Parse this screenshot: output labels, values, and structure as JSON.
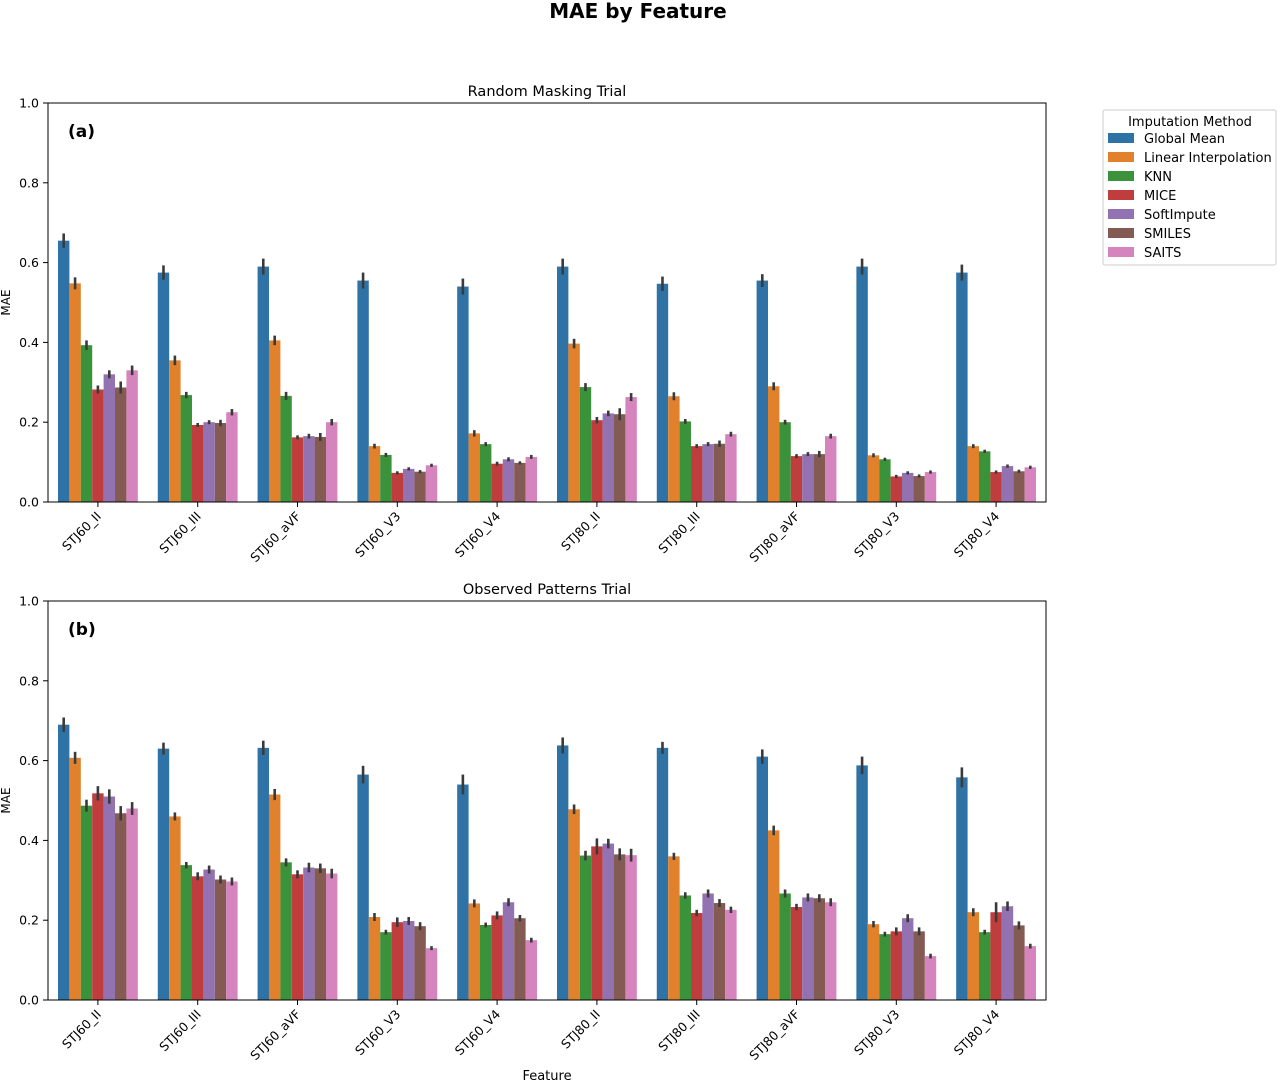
{
  "figure": {
    "title": "MAE by Feature",
    "xlabel": "Feature",
    "legend": {
      "title": "Imputation Method",
      "placement": "outside-right"
    }
  },
  "chart_data": [
    {
      "type": "bar",
      "title": "Random Masking Trial",
      "panel_label": "(a)",
      "xlabel": "",
      "ylabel": "MAE",
      "ylim": [
        0,
        1.0
      ],
      "yticks": [
        "0.0",
        "0.2",
        "0.4",
        "0.6",
        "0.8",
        "1.0"
      ],
      "categories": [
        "STJ60_II",
        "STJ60_III",
        "STJ60_aVF",
        "STJ60_V3",
        "STJ60_V4",
        "STJ80_II",
        "STJ80_III",
        "STJ80_aVF",
        "STJ80_V3",
        "STJ80_V4"
      ],
      "series": [
        {
          "name": "Global Mean",
          "color": "#2f72a6",
          "values": [
            0.655,
            0.575,
            0.59,
            0.555,
            0.54,
            0.59,
            0.547,
            0.555,
            0.59,
            0.575
          ],
          "errors": [
            0.018,
            0.018,
            0.02,
            0.02,
            0.02,
            0.02,
            0.018,
            0.016,
            0.02,
            0.02
          ]
        },
        {
          "name": "Linear Interpolation",
          "color": "#e1812c",
          "values": [
            0.548,
            0.355,
            0.405,
            0.14,
            0.172,
            0.397,
            0.265,
            0.29,
            0.117,
            0.14
          ],
          "errors": [
            0.015,
            0.012,
            0.012,
            0.006,
            0.008,
            0.012,
            0.01,
            0.01,
            0.005,
            0.005
          ]
        },
        {
          "name": "KNN",
          "color": "#3a923a",
          "values": [
            0.393,
            0.268,
            0.266,
            0.118,
            0.145,
            0.288,
            0.202,
            0.2,
            0.107,
            0.127
          ],
          "errors": [
            0.012,
            0.008,
            0.01,
            0.005,
            0.005,
            0.01,
            0.006,
            0.006,
            0.004,
            0.004
          ]
        },
        {
          "name": "MICE",
          "color": "#c03d3e",
          "values": [
            0.282,
            0.193,
            0.162,
            0.073,
            0.096,
            0.205,
            0.14,
            0.115,
            0.064,
            0.075
          ],
          "errors": [
            0.01,
            0.005,
            0.005,
            0.004,
            0.005,
            0.008,
            0.005,
            0.005,
            0.004,
            0.004
          ]
        },
        {
          "name": "SoftImpute",
          "color": "#9372b2",
          "values": [
            0.32,
            0.2,
            0.165,
            0.083,
            0.107,
            0.222,
            0.145,
            0.12,
            0.073,
            0.09
          ],
          "errors": [
            0.01,
            0.005,
            0.006,
            0.004,
            0.005,
            0.007,
            0.005,
            0.005,
            0.004,
            0.004
          ]
        },
        {
          "name": "SMILES",
          "color": "#845b53",
          "values": [
            0.287,
            0.198,
            0.163,
            0.076,
            0.098,
            0.22,
            0.146,
            0.12,
            0.065,
            0.077
          ],
          "errors": [
            0.015,
            0.008,
            0.01,
            0.004,
            0.004,
            0.015,
            0.008,
            0.008,
            0.004,
            0.004
          ]
        },
        {
          "name": "SAITS",
          "color": "#d684bd",
          "values": [
            0.33,
            0.225,
            0.2,
            0.092,
            0.113,
            0.263,
            0.17,
            0.165,
            0.075,
            0.087
          ],
          "errors": [
            0.012,
            0.008,
            0.008,
            0.004,
            0.005,
            0.01,
            0.006,
            0.006,
            0.004,
            0.004
          ]
        }
      ]
    },
    {
      "type": "bar",
      "title": "Observed Patterns Trial",
      "panel_label": "(b)",
      "xlabel": "Feature",
      "ylabel": "MAE",
      "ylim": [
        0,
        1.0
      ],
      "yticks": [
        "0.0",
        "0.2",
        "0.4",
        "0.6",
        "0.8",
        "1.0"
      ],
      "categories": [
        "STJ60_II",
        "STJ60_III",
        "STJ60_aVF",
        "STJ60_V3",
        "STJ60_V4",
        "STJ80_II",
        "STJ80_III",
        "STJ80_aVF",
        "STJ80_V3",
        "STJ80_V4"
      ],
      "series": [
        {
          "name": "Global Mean",
          "color": "#2f72a6",
          "values": [
            0.69,
            0.63,
            0.632,
            0.565,
            0.54,
            0.638,
            0.632,
            0.61,
            0.588,
            0.558
          ],
          "errors": [
            0.018,
            0.015,
            0.018,
            0.022,
            0.025,
            0.02,
            0.015,
            0.018,
            0.022,
            0.025
          ]
        },
        {
          "name": "Linear Interpolation",
          "color": "#e1812c",
          "values": [
            0.607,
            0.46,
            0.515,
            0.208,
            0.242,
            0.478,
            0.36,
            0.425,
            0.19,
            0.22
          ],
          "errors": [
            0.015,
            0.01,
            0.014,
            0.01,
            0.01,
            0.012,
            0.009,
            0.012,
            0.008,
            0.01
          ]
        },
        {
          "name": "KNN",
          "color": "#3a923a",
          "values": [
            0.487,
            0.338,
            0.345,
            0.17,
            0.188,
            0.362,
            0.262,
            0.267,
            0.165,
            0.17
          ],
          "errors": [
            0.015,
            0.008,
            0.01,
            0.006,
            0.006,
            0.012,
            0.008,
            0.01,
            0.006,
            0.006
          ]
        },
        {
          "name": "MICE",
          "color": "#c03d3e",
          "values": [
            0.518,
            0.31,
            0.315,
            0.195,
            0.212,
            0.385,
            0.218,
            0.233,
            0.172,
            0.22
          ],
          "errors": [
            0.018,
            0.01,
            0.01,
            0.012,
            0.01,
            0.02,
            0.008,
            0.008,
            0.01,
            0.025
          ]
        },
        {
          "name": "SoftImpute",
          "color": "#9372b2",
          "values": [
            0.51,
            0.327,
            0.332,
            0.198,
            0.245,
            0.392,
            0.267,
            0.257,
            0.205,
            0.235
          ],
          "errors": [
            0.018,
            0.01,
            0.012,
            0.01,
            0.01,
            0.012,
            0.01,
            0.01,
            0.01,
            0.012
          ]
        },
        {
          "name": "SMILES",
          "color": "#845b53",
          "values": [
            0.468,
            0.302,
            0.33,
            0.185,
            0.205,
            0.365,
            0.243,
            0.255,
            0.172,
            0.187
          ],
          "errors": [
            0.018,
            0.01,
            0.012,
            0.01,
            0.008,
            0.015,
            0.01,
            0.01,
            0.01,
            0.01
          ]
        },
        {
          "name": "SAITS",
          "color": "#d684bd",
          "values": [
            0.48,
            0.297,
            0.317,
            0.13,
            0.15,
            0.363,
            0.226,
            0.245,
            0.11,
            0.135
          ],
          "errors": [
            0.016,
            0.01,
            0.012,
            0.005,
            0.006,
            0.016,
            0.008,
            0.01,
            0.006,
            0.006
          ]
        }
      ]
    }
  ]
}
